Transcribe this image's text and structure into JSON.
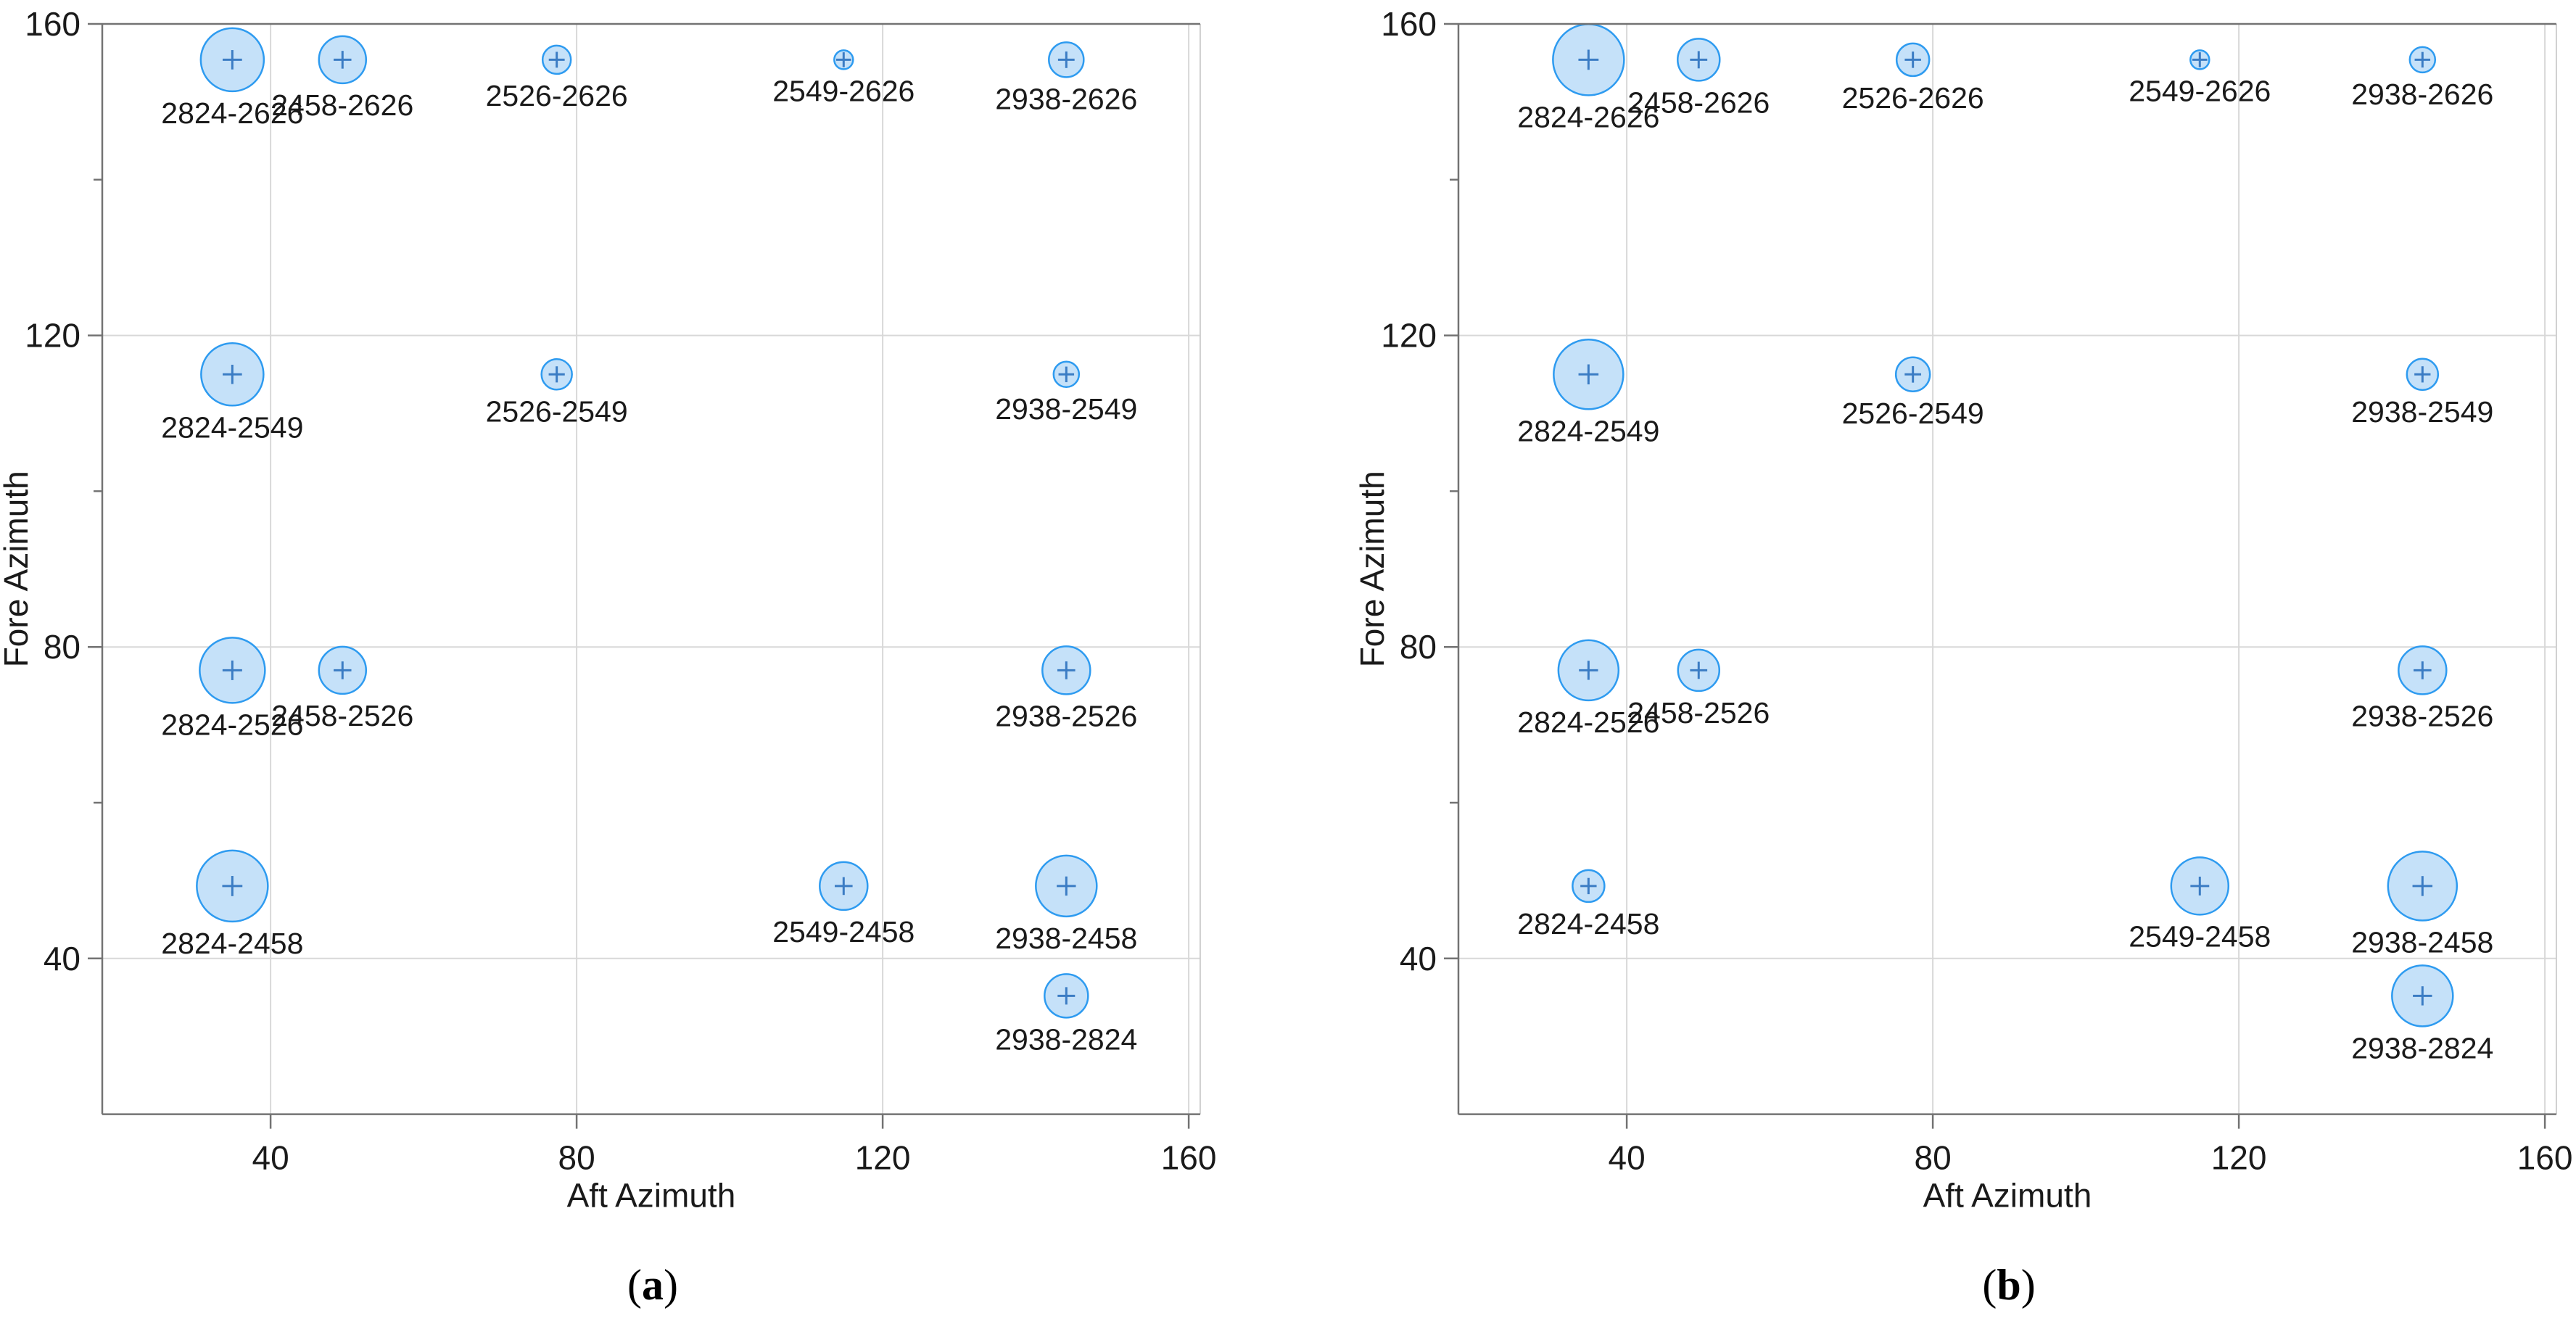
{
  "figure": {
    "background": "#FFFFFF",
    "captions": [
      {
        "open": "(",
        "letter": "a",
        "close": ")"
      },
      {
        "open": "(",
        "letter": "b",
        "close": ")"
      }
    ]
  },
  "colors": {
    "bubble_fill": "#C5E1F9",
    "bubble_stroke": "#2E9BF0",
    "cross": "#3B7CC4",
    "grid": "#D8D8D8",
    "axis": "#737373",
    "right_border": "#CFCFCF",
    "text": "#1A1A1A"
  },
  "chart_data": [
    {
      "type": "bubble",
      "panel": "a",
      "xlabel": "Aft Azimuth",
      "ylabel": "Fore Azimuth",
      "xlim": [
        18,
        161.5
      ],
      "ylim": [
        20,
        160
      ],
      "xticks": [
        40,
        80,
        120,
        160
      ],
      "yticks": [
        40,
        80,
        120,
        160
      ],
      "yticks_minor": [
        60,
        100,
        140
      ],
      "grid": true,
      "points": [
        {
          "label": "2824-2626",
          "x": 35,
          "y": 155.4,
          "d": 87
        },
        {
          "label": "2458-2626",
          "x": 49.4,
          "y": 155.4,
          "d": 65
        },
        {
          "label": "2526-2626",
          "x": 77.4,
          "y": 155.4,
          "d": 39
        },
        {
          "label": "2549-2626",
          "x": 114.9,
          "y": 155.4,
          "d": 26
        },
        {
          "label": "2938-2626",
          "x": 144,
          "y": 155.4,
          "d": 48
        },
        {
          "label": "2824-2549",
          "x": 35,
          "y": 115,
          "d": 86
        },
        {
          "label": "2526-2549",
          "x": 77.4,
          "y": 115,
          "d": 42
        },
        {
          "label": "2938-2549",
          "x": 144,
          "y": 115,
          "d": 35
        },
        {
          "label": "2824-2526",
          "x": 35,
          "y": 77,
          "d": 90
        },
        {
          "label": "2458-2526",
          "x": 49.4,
          "y": 77,
          "d": 65
        },
        {
          "label": "2938-2526",
          "x": 144,
          "y": 77,
          "d": 66
        },
        {
          "label": "2824-2458",
          "x": 35,
          "y": 49.3,
          "d": 98
        },
        {
          "label": "2549-2458",
          "x": 114.9,
          "y": 49.3,
          "d": 66
        },
        {
          "label": "2938-2458",
          "x": 144,
          "y": 49.3,
          "d": 84
        },
        {
          "label": "2938-2824",
          "x": 144,
          "y": 35.2,
          "d": 60
        }
      ]
    },
    {
      "type": "bubble",
      "panel": "b",
      "xlabel": "Aft Azimuth",
      "ylabel": "Fore Azimuth",
      "xlim": [
        18,
        161.5
      ],
      "ylim": [
        20,
        160
      ],
      "xticks": [
        40,
        80,
        120,
        160
      ],
      "yticks": [
        40,
        80,
        120,
        160
      ],
      "yticks_minor": [
        60,
        100,
        140
      ],
      "grid": true,
      "points": [
        {
          "label": "2824-2626",
          "x": 35,
          "y": 155.4,
          "d": 98
        },
        {
          "label": "2458-2626",
          "x": 49.4,
          "y": 155.4,
          "d": 58
        },
        {
          "label": "2526-2626",
          "x": 77.4,
          "y": 155.4,
          "d": 45
        },
        {
          "label": "2549-2626",
          "x": 114.9,
          "y": 155.4,
          "d": 26
        },
        {
          "label": "2938-2626",
          "x": 144,
          "y": 155.4,
          "d": 35
        },
        {
          "label": "2824-2549",
          "x": 35,
          "y": 115,
          "d": 96
        },
        {
          "label": "2526-2549",
          "x": 77.4,
          "y": 115,
          "d": 47
        },
        {
          "label": "2938-2549",
          "x": 144,
          "y": 115,
          "d": 43
        },
        {
          "label": "2824-2526",
          "x": 35,
          "y": 77,
          "d": 83
        },
        {
          "label": "2458-2526",
          "x": 49.4,
          "y": 77,
          "d": 57
        },
        {
          "label": "2938-2526",
          "x": 144,
          "y": 77,
          "d": 66
        },
        {
          "label": "2824-2458",
          "x": 35,
          "y": 49.3,
          "d": 44
        },
        {
          "label": "2549-2458",
          "x": 114.9,
          "y": 49.3,
          "d": 79
        },
        {
          "label": "2938-2458",
          "x": 144,
          "y": 49.3,
          "d": 95
        },
        {
          "label": "2938-2824",
          "x": 144,
          "y": 35.2,
          "d": 84
        }
      ]
    }
  ]
}
